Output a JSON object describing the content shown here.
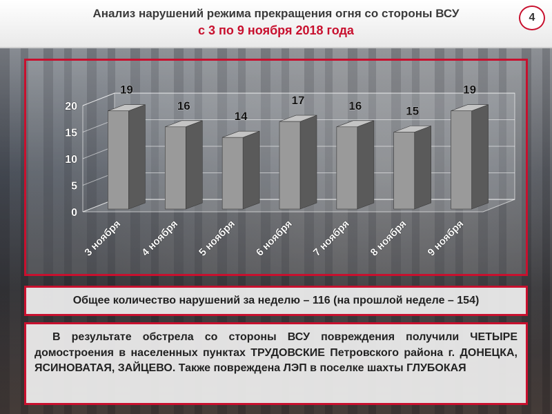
{
  "header": {
    "title": "Анализ нарушений режима прекращения огня со стороны ВСУ",
    "subtitle": "с 3 по 9 ноября 2018 года",
    "page_number": "4"
  },
  "chart_data": {
    "type": "bar",
    "categories": [
      "3 ноября",
      "4 ноября",
      "5 ноября",
      "6 ноября",
      "7 ноября",
      "8 ноября",
      "9 ноября"
    ],
    "values": [
      19,
      16,
      14,
      17,
      16,
      15,
      19
    ],
    "ylim": [
      0,
      20
    ],
    "yticks": [
      0,
      5,
      10,
      15,
      20
    ],
    "grid": true,
    "legend": "none",
    "title": "",
    "xlabel": "",
    "ylabel": "",
    "colors": {
      "bar_front": "#9a9a9a",
      "bar_side": "#5a5a5a",
      "bar_top": "#c4c4c4"
    }
  },
  "summary": {
    "total_text": "Общее количество нарушений за неделю – 116 (на прошлой неделе – 154)"
  },
  "details": {
    "text": "В результате обстрела со стороны ВСУ повреждения получили ЧЕТЫРЕ домостроения в населенных пунктах ТРУДОВСКИЕ Петровского района г. ДОНЕЦКА, ЯСИНОВАТАЯ, ЗАЙЦЕВО. Также повреждена ЛЭП в поселке шахты ГЛУБОКАЯ"
  },
  "colors": {
    "accent": "#c8102e",
    "title": "#3a3a3a"
  }
}
